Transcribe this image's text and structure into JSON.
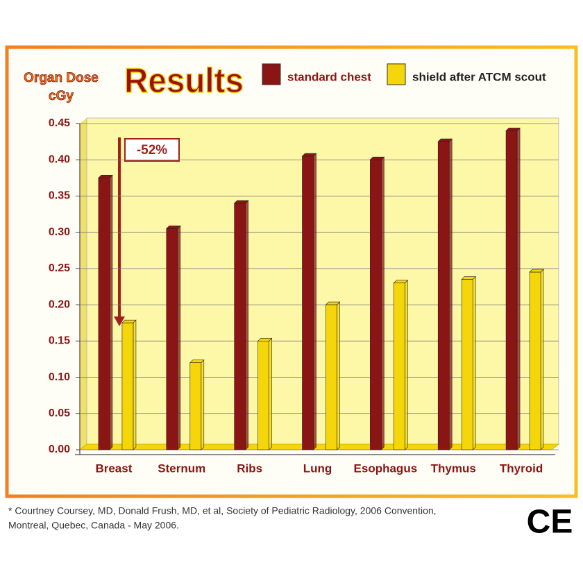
{
  "chart_data": {
    "type": "bar",
    "title": "Results",
    "y_label": [
      "Organ Dose",
      "cGy"
    ],
    "categories": [
      "Breast",
      "Sternum",
      "Ribs",
      "Lung",
      "Esophagus",
      "Thymus",
      "Thyroid"
    ],
    "series": [
      {
        "name": "standard chest",
        "color": "#8b1414",
        "values": [
          0.375,
          0.305,
          0.34,
          0.405,
          0.4,
          0.425,
          0.44
        ]
      },
      {
        "name": "shield after ATCM scout",
        "color": "#f5d60a",
        "values": [
          0.175,
          0.12,
          0.15,
          0.2,
          0.23,
          0.235,
          0.245
        ]
      }
    ],
    "ylim": [
      0,
      0.45
    ],
    "yticks": [
      {
        "value": 0,
        "label": "0.00"
      },
      {
        "value": 0.05,
        "label": "0.05"
      },
      {
        "value": 0.1,
        "label": "0.10"
      },
      {
        "value": 0.15,
        "label": "0.15"
      },
      {
        "value": 0.2,
        "label": "0.20"
      },
      {
        "value": 0.25,
        "label": "0.25"
      },
      {
        "value": 0.3,
        "label": "0.30"
      },
      {
        "value": 0.35,
        "label": "0.35"
      },
      {
        "value": 0.4,
        "label": "0.40"
      },
      {
        "value": 0.45,
        "label": "0.45"
      }
    ],
    "grid": true,
    "annotation": "-52%"
  },
  "footnote": [
    "* Courtney Coursey, MD, Donald Frush, MD, et al, Society of Pediatric Radiology, 2006 Convention,",
    "Montreal, Quebec, Canada - May 2006."
  ],
  "mark": "CE"
}
